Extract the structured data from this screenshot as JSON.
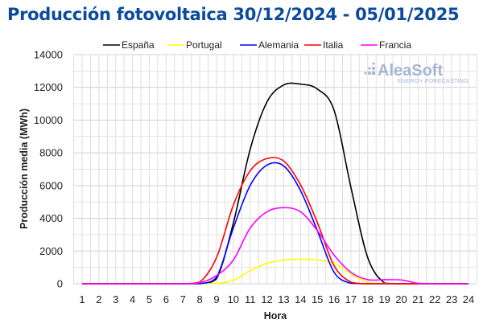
{
  "chart_data": {
    "type": "line",
    "title": "Producción fotovoltaica 30/12/2024 - 05/01/2025",
    "xlabel": "Hora",
    "ylabel": "Producción media (MWh)",
    "xlim": [
      1,
      24
    ],
    "ylim": [
      0,
      14000
    ],
    "yticks": [
      0,
      2000,
      4000,
      6000,
      8000,
      10000,
      12000,
      14000
    ],
    "x": [
      1,
      2,
      3,
      4,
      5,
      6,
      7,
      8,
      9,
      10,
      11,
      12,
      13,
      14,
      15,
      16,
      17,
      18,
      19,
      20,
      21,
      22,
      23,
      24
    ],
    "grid": true,
    "legend": "top",
    "series": [
      {
        "name": "España",
        "color": "#000000",
        "values": [
          0,
          0,
          0,
          0,
          0,
          0,
          0,
          0,
          300,
          3700,
          8200,
          11100,
          12150,
          12200,
          11900,
          10600,
          5900,
          1600,
          50,
          0,
          0,
          0,
          0,
          0
        ]
      },
      {
        "name": "Portugal",
        "color": "#ffff00",
        "values": [
          0,
          0,
          0,
          0,
          0,
          0,
          0,
          0,
          20,
          200,
          800,
          1250,
          1450,
          1500,
          1450,
          1250,
          600,
          100,
          20,
          0,
          0,
          0,
          0,
          0
        ]
      },
      {
        "name": "Alemania",
        "color": "#0000ff",
        "values": [
          0,
          0,
          0,
          0,
          0,
          0,
          0,
          0,
          400,
          3400,
          6000,
          7250,
          7200,
          5700,
          3250,
          700,
          30,
          0,
          0,
          0,
          0,
          0,
          0,
          0
        ]
      },
      {
        "name": "Italia",
        "color": "#ff0000",
        "values": [
          0,
          0,
          0,
          0,
          0,
          0,
          0,
          100,
          1600,
          4800,
          6900,
          7650,
          7500,
          6050,
          3750,
          1100,
          100,
          0,
          0,
          0,
          0,
          0,
          0,
          0
        ]
      },
      {
        "name": "Francia",
        "color": "#ff00ff",
        "values": [
          0,
          0,
          0,
          0,
          0,
          0,
          0,
          50,
          500,
          1450,
          3400,
          4400,
          4650,
          4400,
          3250,
          1750,
          700,
          250,
          250,
          230,
          30,
          0,
          0,
          0
        ]
      }
    ]
  },
  "logo": {
    "name": "AleaSoft",
    "tagline": "ENERGY FORECASTING"
  }
}
